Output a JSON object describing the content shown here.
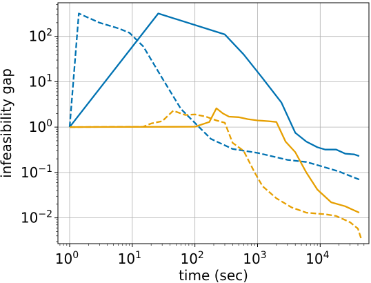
{
  "chart_data": {
    "type": "line",
    "xlabel": "time (sec)",
    "ylabel": "infeasibility gap",
    "xscale": "log",
    "yscale": "log",
    "xlim": [
      0.65,
      60000
    ],
    "ylim": [
      0.0027,
      550
    ],
    "grid": true,
    "x_ticks": [
      {
        "base": "10",
        "exp": "0"
      },
      {
        "base": "10",
        "exp": "1"
      },
      {
        "base": "10",
        "exp": "2"
      },
      {
        "base": "10",
        "exp": "3"
      },
      {
        "base": "10",
        "exp": "4"
      }
    ],
    "y_ticks": [
      {
        "base": "10",
        "exp": "−2"
      },
      {
        "base": "10",
        "exp": "−1"
      },
      {
        "base": "10",
        "exp": "0"
      },
      {
        "base": "10",
        "exp": "1"
      },
      {
        "base": "10",
        "exp": "2"
      }
    ],
    "series": [
      {
        "color": "#0072b2",
        "dash": "solid",
        "x": [
          1,
          26,
          300,
          600,
          1200,
          2400,
          4000,
          6000,
          9000,
          12000,
          18000,
          25000,
          35000,
          42000
        ],
        "y": [
          1.0,
          320,
          110,
          40,
          12,
          3.5,
          0.75,
          0.48,
          0.36,
          0.32,
          0.32,
          0.26,
          0.25,
          0.23
        ]
      },
      {
        "color": "#0072b2",
        "dash": "dashed",
        "x": [
          1,
          1.4,
          3,
          6,
          9,
          15,
          30,
          60,
          180,
          400,
          1000,
          3000,
          6000,
          10000,
          20000,
          42000
        ],
        "y": [
          1.0,
          320,
          200,
          150,
          120,
          60,
          12,
          2.5,
          0.55,
          0.33,
          0.27,
          0.19,
          0.17,
          0.14,
          0.105,
          0.07
        ]
      },
      {
        "color": "#e69f00",
        "dash": "solid",
        "x": [
          1,
          100,
          170,
          220,
          280,
          350,
          500,
          700,
          1000,
          1500,
          2000,
          2800,
          4000,
          6000,
          9000,
          15000,
          25000,
          42000
        ],
        "y": [
          1.0,
          1.02,
          1.3,
          2.6,
          2.0,
          1.7,
          1.65,
          1.5,
          1.4,
          1.35,
          1.3,
          0.48,
          0.28,
          0.1,
          0.042,
          0.022,
          0.018,
          0.013
        ]
      },
      {
        "color": "#e69f00",
        "dash": "dashed",
        "x": [
          1,
          15,
          20,
          30,
          45,
          70,
          100,
          150,
          220,
          300,
          400,
          600,
          900,
          1200,
          2000,
          3500,
          6000,
          12000,
          18000,
          30000,
          40000,
          45000
        ],
        "y": [
          1.0,
          1.02,
          1.2,
          1.35,
          2.3,
          1.85,
          1.9,
          1.7,
          1.4,
          1.25,
          0.45,
          0.3,
          0.1,
          0.05,
          0.027,
          0.017,
          0.013,
          0.012,
          0.011,
          0.008,
          0.0058,
          0.0035
        ]
      }
    ]
  }
}
